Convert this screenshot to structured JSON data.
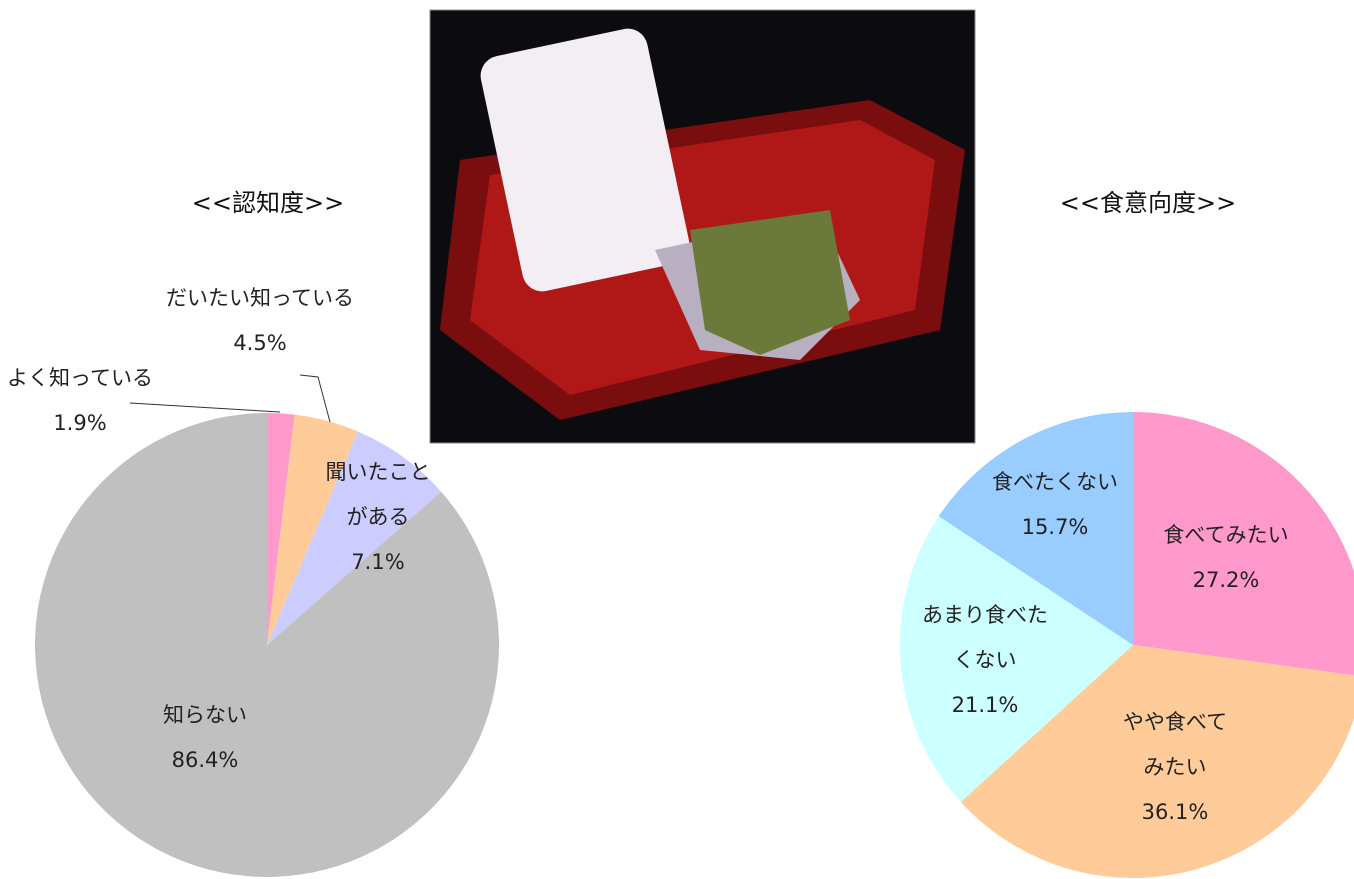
{
  "chart_data": [
    {
      "type": "pie",
      "title": "<<認知度>>",
      "categories": [
        "よく知っている",
        "だいたい知っている",
        "聞いたこと\nがある",
        "知らない"
      ],
      "values": [
        1.9,
        4.5,
        7.1,
        86.4
      ],
      "value_labels": [
        "1.9%",
        "4.5%",
        "7.1%",
        "86.4%"
      ],
      "colors": [
        "#ff99cc",
        "#ffcc99",
        "#ccccff",
        "#c0c0c0"
      ]
    },
    {
      "type": "pie",
      "title": "<<食意向度>>",
      "categories": [
        "食べてみたい",
        "やや食べて\nみたい",
        "あまり食べた\nくない",
        "食べたくない"
      ],
      "values": [
        27.2,
        36.1,
        21.1,
        15.7
      ],
      "value_labels": [
        "27.2%",
        "36.1%",
        "21.1%",
        "15.7%"
      ],
      "colors": [
        "#ff99cc",
        "#ffcc99",
        "#ccffff",
        "#99ccff"
      ]
    }
  ]
}
